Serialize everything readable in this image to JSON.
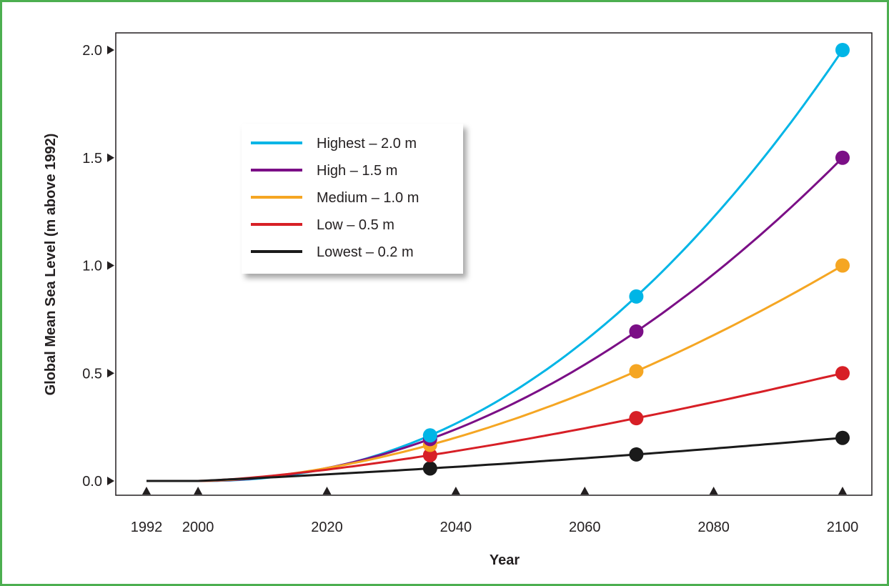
{
  "chart_data": {
    "type": "line",
    "xlabel": "Year",
    "ylabel": "Global Mean Sea Level (m above 1992)",
    "xlim": [
      1992,
      2100
    ],
    "ylim": [
      0,
      2.0
    ],
    "x_ticks": [
      {
        "value": 1992,
        "label": "1992"
      },
      {
        "value": 2000,
        "label": "2000"
      },
      {
        "value": 2020,
        "label": "2020"
      },
      {
        "value": 2040,
        "label": "2040"
      },
      {
        "value": 2060,
        "label": "2060"
      },
      {
        "value": 2080,
        "label": "2080"
      },
      {
        "value": 2100,
        "label": "2100"
      }
    ],
    "y_ticks": [
      {
        "value": 0.0,
        "label": "0.0"
      },
      {
        "value": 0.5,
        "label": "0.5"
      },
      {
        "value": 1.0,
        "label": "1.0"
      },
      {
        "value": 1.5,
        "label": "1.5"
      },
      {
        "value": 2.0,
        "label": "2.0"
      }
    ],
    "legend_position": "upper-left",
    "grid": false,
    "series": [
      {
        "name": "Highest – 2.0 m",
        "color": "#00b5e6",
        "end_value": 2.0
      },
      {
        "name": "High – 1.5 m",
        "color": "#7b0f86",
        "end_value": 1.5
      },
      {
        "name": "Medium – 1.0 m",
        "color": "#f5a623",
        "end_value": 1.0
      },
      {
        "name": "Low – 0.5 m",
        "color": "#d71f26",
        "end_value": 0.5
      },
      {
        "name": "Lowest – 0.2 m",
        "color": "#1a1a1a",
        "end_value": 0.2
      }
    ],
    "marker_years": [
      2036,
      2068,
      2100
    ]
  }
}
